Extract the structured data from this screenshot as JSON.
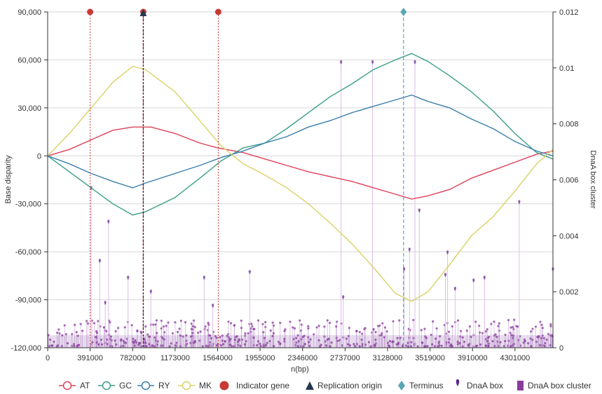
{
  "chart_data": {
    "type": "line",
    "xlabel": "n(bp)",
    "ylabel_left": "Base disparity",
    "ylabel_right": "DnaA box cluster",
    "x_ticks": [
      0,
      391000,
      782000,
      1173000,
      1564000,
      1955000,
      2346000,
      2737000,
      3128000,
      3519000,
      3910000,
      4301000
    ],
    "x_tick_labels": [
      "0",
      "391000",
      "782000",
      "1173000",
      "1564000",
      "1955000",
      "2346000",
      "2737000",
      "3128000",
      "3519000",
      "3910000",
      "4301000"
    ],
    "xlim": [
      0,
      4650000
    ],
    "y_left_ticks": [
      -120000,
      -90000,
      -60000,
      -30000,
      0,
      30000,
      60000,
      90000
    ],
    "y_left_tick_labels": [
      "-120,000",
      "-90,000",
      "-60,000",
      "-30,000",
      "0",
      "30,000",
      "60,000",
      "90,000"
    ],
    "ylim_left": [
      -120000,
      90000
    ],
    "y_right_ticks": [
      0,
      0.002,
      0.004,
      0.006,
      0.008,
      0.01,
      0.012
    ],
    "y_right_tick_labels": [
      "0",
      "0.002",
      "0.004",
      "0.006",
      "0.008",
      "0.01",
      "0.012"
    ],
    "ylim_right": [
      0,
      0.012
    ],
    "grid": true,
    "legend_position": "bottom",
    "series": [
      {
        "name": "AT",
        "color": "#e0405a",
        "x": [
          0,
          200000,
          400000,
          600000,
          782000,
          950000,
          1173000,
          1400000,
          1564000,
          1800000,
          2000000,
          2200000,
          2400000,
          2600000,
          2800000,
          3000000,
          3200000,
          3350000,
          3500000,
          3700000,
          3900000,
          4100000,
          4300000,
          4500000,
          4650000
        ],
        "y": [
          0,
          4000,
          10000,
          16000,
          18000,
          18000,
          14000,
          8000,
          5000,
          2000,
          -2000,
          -6000,
          -10000,
          -13000,
          -16000,
          -20000,
          -24000,
          -27000,
          -25000,
          -21000,
          -14000,
          -9000,
          -4000,
          1000,
          3000
        ]
      },
      {
        "name": "GC",
        "color": "#3a9e8a",
        "x": [
          0,
          200000,
          400000,
          600000,
          782000,
          900000,
          1173000,
          1400000,
          1600000,
          1800000,
          2000000,
          2200000,
          2400000,
          2600000,
          2800000,
          3000000,
          3200000,
          3350000,
          3500000,
          3700000,
          3900000,
          4100000,
          4300000,
          4500000,
          4650000
        ],
        "y": [
          0,
          -10000,
          -20000,
          -30000,
          -37000,
          -35000,
          -26000,
          -14000,
          -3000,
          5000,
          8000,
          17000,
          27000,
          37000,
          45000,
          54000,
          60000,
          64000,
          59000,
          50000,
          40000,
          28000,
          14000,
          2000,
          -2000
        ]
      },
      {
        "name": "RY",
        "color": "#3a7fad",
        "x": [
          0,
          200000,
          400000,
          600000,
          782000,
          900000,
          1173000,
          1400000,
          1600000,
          1800000,
          2000000,
          2200000,
          2400000,
          2600000,
          2800000,
          3000000,
          3200000,
          3350000,
          3500000,
          3700000,
          3900000,
          4100000,
          4300000,
          4500000,
          4650000
        ],
        "y": [
          0,
          -5000,
          -11000,
          -16000,
          -20000,
          -17000,
          -11000,
          -6000,
          -1000,
          3000,
          8000,
          12000,
          18000,
          22000,
          27000,
          31000,
          35000,
          38000,
          34000,
          30000,
          23000,
          17000,
          9000,
          3000,
          0
        ]
      },
      {
        "name": "MK",
        "color": "#d9d266",
        "x": [
          0,
          200000,
          400000,
          600000,
          782000,
          900000,
          1173000,
          1400000,
          1600000,
          1800000,
          2000000,
          2200000,
          2400000,
          2600000,
          2800000,
          3000000,
          3200000,
          3350000,
          3500000,
          3700000,
          3900000,
          4100000,
          4300000,
          4500000,
          4650000
        ],
        "y": [
          0,
          14000,
          30000,
          46000,
          56000,
          54000,
          40000,
          22000,
          6000,
          -5000,
          -12000,
          -20000,
          -30000,
          -42000,
          -55000,
          -70000,
          -86000,
          -91000,
          -85000,
          -68000,
          -50000,
          -38000,
          -22000,
          -5000,
          4000
        ]
      }
    ],
    "dnaa_box_peaks": {
      "x": [
        400000,
        480000,
        530000,
        560000,
        740000,
        950000,
        1440000,
        1520000,
        1860000,
        2700000,
        2720000,
        2990000,
        3280000,
        3330000,
        3380000,
        3420000,
        3660000,
        3680000,
        3750000,
        3920000,
        4020000,
        4340000,
        4650000
      ],
      "y": [
        0.0057,
        0.0031,
        0.0016,
        0.0045,
        0.0025,
        0.002,
        0.0025,
        0.0015,
        0.0027,
        0.0102,
        0.0018,
        0.0102,
        0.0028,
        0.0035,
        0.0102,
        0.0049,
        0.0026,
        0.0034,
        0.0021,
        0.0024,
        0.0025,
        0.0052,
        0.0028
      ]
    },
    "dnaa_box_base": {
      "x_range": [
        0,
        4650000
      ],
      "y_range": [
        5e-05,
        0.001
      ]
    },
    "indicator_genes": {
      "name": "Indicator gene",
      "color": "#c83a33",
      "x": [
        391000,
        880000,
        1570000
      ]
    },
    "replication_origin": {
      "name": "Replication origin",
      "color": "#24374f",
      "x": 880000
    },
    "terminus": {
      "name": "Terminus",
      "color": "#5ba7b5",
      "x": 3275000
    },
    "dnaa_box": {
      "name": "DnaA box",
      "color": "#5b2c8a"
    },
    "dnaa_box_cluster": {
      "name": "DnaA box cluster",
      "color": "#8a3c9c"
    }
  }
}
